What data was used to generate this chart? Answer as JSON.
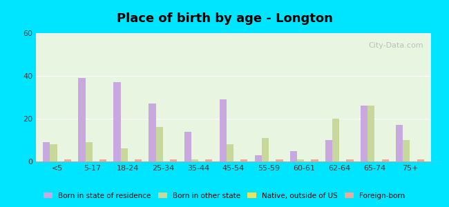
{
  "title": "Place of birth by age - Longton",
  "categories": [
    "<5",
    "5-17",
    "18-24",
    "25-34",
    "35-44",
    "45-54",
    "55-59",
    "60-61",
    "62-64",
    "65-74",
    "75+"
  ],
  "series": {
    "Born in state of residence": [
      9,
      39,
      37,
      27,
      14,
      29,
      3,
      5,
      10,
      26,
      17
    ],
    "Born in other state": [
      8,
      9,
      6,
      16,
      1,
      8,
      11,
      1,
      20,
      26,
      10
    ],
    "Native, outside of US": [
      0,
      0,
      0,
      0,
      0,
      0,
      0,
      0,
      0,
      0,
      0
    ],
    "Foreign-born": [
      1,
      1,
      1,
      1,
      1,
      1,
      1,
      1,
      1,
      1,
      1
    ]
  },
  "colors": {
    "Born in state of residence": "#c9a8e0",
    "Born in other state": "#c8d89a",
    "Native, outside of US": "#f0e060",
    "Foreign-born": "#f0a898"
  },
  "ylim": [
    0,
    60
  ],
  "yticks": [
    0,
    20,
    40,
    60
  ],
  "bar_width": 0.2,
  "background_color": "#e8f5e0",
  "outer_background": "#00e5ff",
  "watermark": "City-Data.com"
}
